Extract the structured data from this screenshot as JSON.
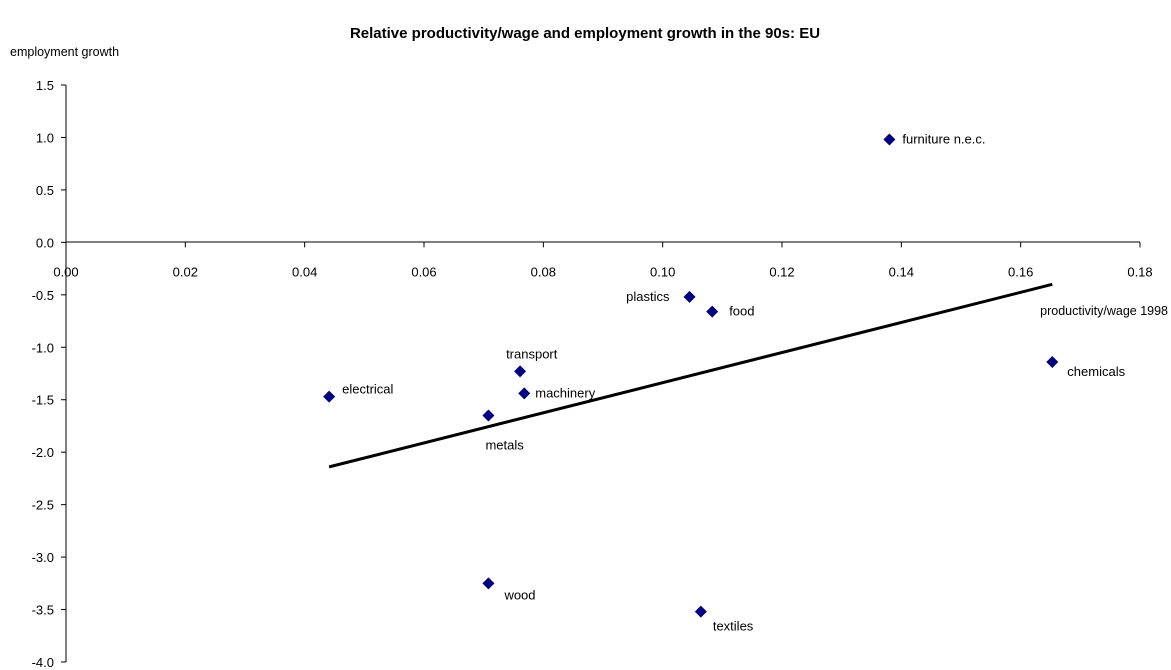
{
  "chart_data": {
    "type": "scatter",
    "title": "Relative productivity/wage and employment growth in the 90s: EU",
    "xlabel": "productivity/wage 1998",
    "ylabel": "employment growth",
    "xlim": [
      0.0,
      0.18
    ],
    "ylim": [
      -4.0,
      1.5
    ],
    "x_ticks": [
      "0.00",
      "0.02",
      "0.04",
      "0.06",
      "0.08",
      "0.10",
      "0.12",
      "0.14",
      "0.16",
      "0.18"
    ],
    "y_ticks": [
      "1.5",
      "1.0",
      "0.5",
      "0.0",
      "-0.5",
      "-1.0",
      "-1.5",
      "-2.0",
      "-2.5",
      "-3.0",
      "-3.5",
      "-4.0"
    ],
    "grid": false,
    "marker_color": "#000080",
    "line_color": "#000000",
    "points": [
      {
        "label": "furniture n.e.c.",
        "x": 0.138,
        "y": 0.98
      },
      {
        "label": "plastics",
        "x": 0.1045,
        "y": -0.52
      },
      {
        "label": "food",
        "x": 0.1083,
        "y": -0.66
      },
      {
        "label": "chemicals",
        "x": 0.1653,
        "y": -1.14
      },
      {
        "label": "transport",
        "x": 0.0761,
        "y": -1.23
      },
      {
        "label": "machinery",
        "x": 0.0768,
        "y": -1.44
      },
      {
        "label": "electrical",
        "x": 0.0441,
        "y": -1.47
      },
      {
        "label": "metals",
        "x": 0.0708,
        "y": -1.65
      },
      {
        "label": "wood",
        "x": 0.0708,
        "y": -3.25
      },
      {
        "label": "textiles",
        "x": 0.1064,
        "y": -3.52
      }
    ],
    "trendline": {
      "x": [
        0.0441,
        0.1653
      ],
      "y": [
        -2.14,
        -0.4
      ]
    }
  }
}
